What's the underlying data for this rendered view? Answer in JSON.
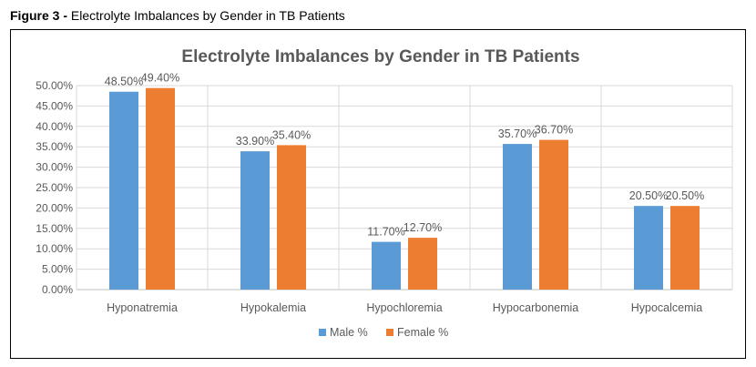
{
  "figure_caption": {
    "label": "Figure 3 -",
    "text": " Electrolyte Imbalances by Gender in TB Patients"
  },
  "chart_data": {
    "type": "bar",
    "title": "Electrolyte Imbalances by Gender in TB Patients",
    "categories": [
      "Hyponatremia",
      "Hypokalemia",
      "Hypochloremia",
      "Hypocarbonemia",
      "Hypocalcemia"
    ],
    "series": [
      {
        "name": "Male %",
        "values": [
          48.5,
          33.9,
          11.7,
          35.7,
          20.5
        ],
        "color": "#5B9BD5"
      },
      {
        "name": "Female %",
        "values": [
          49.4,
          35.4,
          12.7,
          36.7,
          20.5
        ],
        "color": "#ED7D31"
      }
    ],
    "data_labels": [
      [
        "48.50%",
        "33.90%",
        "11.70%",
        "35.70%",
        "20.50%"
      ],
      [
        "49.40%",
        "35.40%",
        "12.70%",
        "36.70%",
        "20.50%"
      ]
    ],
    "ytick_labels": [
      "0.00%",
      "5.00%",
      "10.00%",
      "15.00%",
      "20.00%",
      "25.00%",
      "30.00%",
      "35.00%",
      "40.00%",
      "45.00%",
      "50.00%"
    ],
    "ylim": [
      0,
      50
    ],
    "ytick_step": 5,
    "grid": true,
    "legend_position": "bottom"
  }
}
